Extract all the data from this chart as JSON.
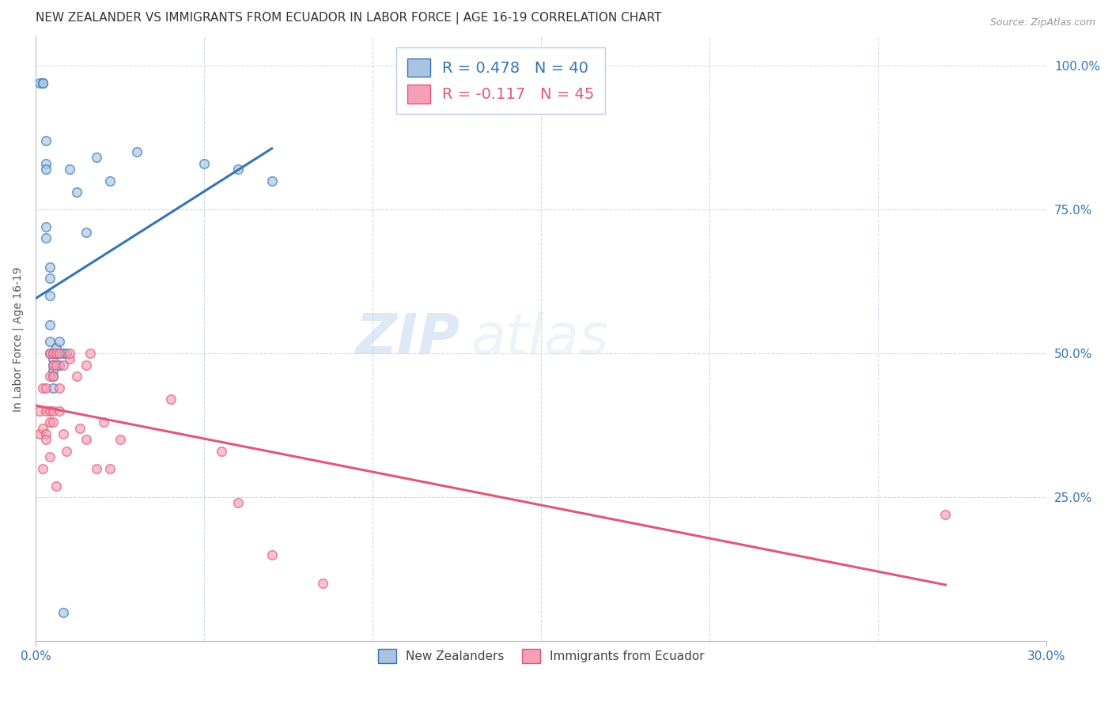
{
  "title": "NEW ZEALANDER VS IMMIGRANTS FROM ECUADOR IN LABOR FORCE | AGE 16-19 CORRELATION CHART",
  "source": "Source: ZipAtlas.com",
  "ylabel": "In Labor Force | Age 16-19",
  "right_ytick_labels": [
    "100.0%",
    "75.0%",
    "50.0%",
    "25.0%"
  ],
  "right_ytick_values": [
    1.0,
    0.75,
    0.5,
    0.25
  ],
  "xlim": [
    0.0,
    0.3
  ],
  "ylim": [
    0.0,
    1.05
  ],
  "legend_r1": "R = 0.478",
  "legend_n1": "N = 40",
  "legend_r2": "R = -0.117",
  "legend_n2": "N = 45",
  "nz_color": "#a8c4e0",
  "nz_line_color": "#3575b5",
  "ec_color": "#f5a0b8",
  "ec_line_color": "#e05878",
  "watermark_zip": "ZIP",
  "watermark_atlas": "atlas",
  "background_color": "#ffffff",
  "grid_color": "#d0d8e8",
  "nz_scatter_x": [
    0.001,
    0.002,
    0.002,
    0.003,
    0.003,
    0.003,
    0.003,
    0.003,
    0.004,
    0.004,
    0.004,
    0.004,
    0.004,
    0.004,
    0.005,
    0.005,
    0.005,
    0.005,
    0.005,
    0.005,
    0.005,
    0.006,
    0.006,
    0.006,
    0.006,
    0.007,
    0.007,
    0.007,
    0.008,
    0.008,
    0.009,
    0.01,
    0.012,
    0.015,
    0.018,
    0.022,
    0.03,
    0.05,
    0.06,
    0.07
  ],
  "nz_scatter_y": [
    0.97,
    0.97,
    0.97,
    0.87,
    0.83,
    0.82,
    0.72,
    0.7,
    0.65,
    0.63,
    0.6,
    0.55,
    0.52,
    0.5,
    0.5,
    0.5,
    0.49,
    0.48,
    0.47,
    0.46,
    0.44,
    0.5,
    0.5,
    0.5,
    0.51,
    0.52,
    0.5,
    0.48,
    0.05,
    0.5,
    0.5,
    0.82,
    0.78,
    0.71,
    0.84,
    0.8,
    0.85,
    0.83,
    0.82,
    0.8
  ],
  "ec_scatter_x": [
    0.001,
    0.001,
    0.002,
    0.002,
    0.002,
    0.003,
    0.003,
    0.003,
    0.003,
    0.004,
    0.004,
    0.004,
    0.004,
    0.004,
    0.005,
    0.005,
    0.005,
    0.005,
    0.005,
    0.006,
    0.006,
    0.006,
    0.007,
    0.007,
    0.007,
    0.008,
    0.008,
    0.009,
    0.01,
    0.01,
    0.012,
    0.013,
    0.015,
    0.015,
    0.016,
    0.018,
    0.02,
    0.022,
    0.025,
    0.04,
    0.055,
    0.06,
    0.07,
    0.085,
    0.27
  ],
  "ec_scatter_y": [
    0.36,
    0.4,
    0.3,
    0.37,
    0.44,
    0.36,
    0.4,
    0.44,
    0.35,
    0.32,
    0.4,
    0.38,
    0.46,
    0.5,
    0.38,
    0.4,
    0.46,
    0.48,
    0.5,
    0.48,
    0.5,
    0.27,
    0.4,
    0.44,
    0.5,
    0.36,
    0.48,
    0.33,
    0.49,
    0.5,
    0.46,
    0.37,
    0.35,
    0.48,
    0.5,
    0.3,
    0.38,
    0.3,
    0.35,
    0.42,
    0.33,
    0.24,
    0.15,
    0.1,
    0.22
  ],
  "title_fontsize": 11,
  "axis_label_fontsize": 10,
  "tick_fontsize": 11,
  "legend_fontsize": 14,
  "marker_size": 70,
  "marker_alpha": 0.65,
  "marker_linewidth": 1.2
}
